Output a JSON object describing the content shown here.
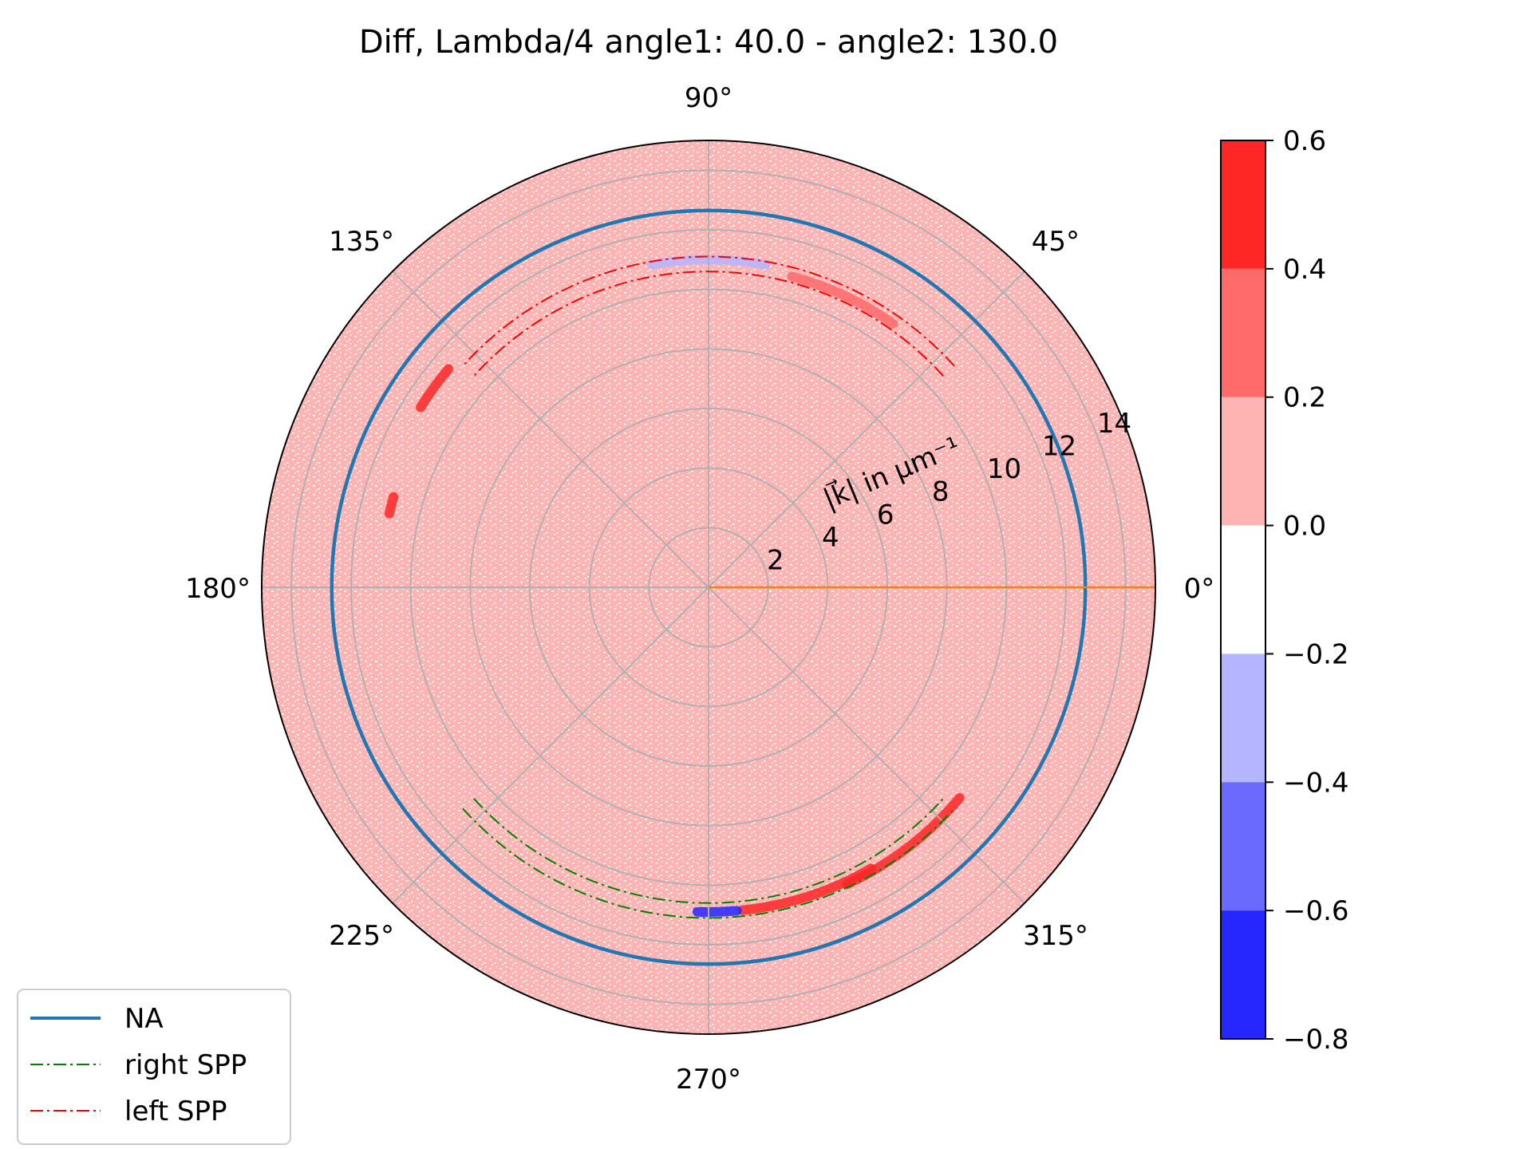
{
  "chart_data": {
    "type": "polar-heatmap",
    "title": "Diff, Lambda/4 angle1: 40.0 - angle2: 130.0",
    "radial_label": "|k⃗| in μm⁻¹",
    "r_max": 15,
    "r_ticks": [
      2,
      4,
      6,
      8,
      10,
      12,
      14
    ],
    "theta_ticks": [
      {
        "deg": 0,
        "label": "0°"
      },
      {
        "deg": 45,
        "label": "45°"
      },
      {
        "deg": 90,
        "label": "90°"
      },
      {
        "deg": 135,
        "label": "135°"
      },
      {
        "deg": 180,
        "label": "180°"
      },
      {
        "deg": 225,
        "label": "225°"
      },
      {
        "deg": 270,
        "label": "270°"
      },
      {
        "deg": 315,
        "label": "315°"
      }
    ],
    "lines": [
      {
        "name": "NA",
        "type": "circle",
        "r": 12.65,
        "color": "#1f77b4",
        "style": "solid"
      },
      {
        "name": "right SPP",
        "type": "arcs",
        "r": [
          10.6,
          11.1
        ],
        "theta_range": [
          222,
          318
        ],
        "color": "#008000",
        "style": "dashdot"
      },
      {
        "name": "left SPP",
        "type": "arcs",
        "r": [
          10.6,
          11.1
        ],
        "theta_range": [
          42,
          138
        ],
        "color": "#ff0000",
        "style": "dashdot"
      },
      {
        "name": "",
        "type": "ray",
        "theta": 0,
        "color": "#ff7f0e",
        "style": "solid"
      }
    ],
    "colorbar": {
      "ticks": [
        "0.6",
        "0.4",
        "0.2",
        "0.0",
        "−0.2",
        "−0.4",
        "−0.6",
        "−0.8"
      ],
      "levels": [
        {
          "from": 0.4,
          "to": 0.6,
          "color": "#ff2626"
        },
        {
          "from": 0.2,
          "to": 0.4,
          "color": "#ff6a6a"
        },
        {
          "from": 0.0,
          "to": 0.2,
          "color": "#ffb4b4"
        },
        {
          "from": -0.2,
          "to": 0.0,
          "color": "#ffffff"
        },
        {
          "from": -0.4,
          "to": -0.2,
          "color": "#b4b4ff"
        },
        {
          "from": -0.6,
          "to": -0.4,
          "color": "#6a6aff"
        },
        {
          "from": -0.8,
          "to": -0.6,
          "color": "#2626ff"
        }
      ]
    },
    "legend": {
      "location": "lower-left",
      "entries": [
        {
          "label": "NA",
          "color": "#1f77b4",
          "style": "solid"
        },
        {
          "label": "right SPP",
          "color": "#008000",
          "style": "dashdot"
        },
        {
          "label": "left SPP",
          "color": "#ff0000",
          "style": "dashdot"
        }
      ]
    },
    "highlights": [
      {
        "theta_range": [
          295,
          320
        ],
        "r": 11.0,
        "value": 0.5
      },
      {
        "theta_range": [
          276,
          300
        ],
        "r": 10.9,
        "value": 0.45
      },
      {
        "theta_range": [
          268,
          275
        ],
        "r": 10.9,
        "value": -0.7
      },
      {
        "theta_range": [
          80,
          100
        ],
        "r": 11.0,
        "value": -0.4
      },
      {
        "theta_range": [
          55,
          75
        ],
        "r": 10.8,
        "value": 0.3
      },
      {
        "theta_range": [
          140,
          148
        ],
        "r": 11.4,
        "value": 0.5
      },
      {
        "theta_range": [
          164,
          167
        ],
        "r": 11.0,
        "value": 0.4
      }
    ]
  }
}
